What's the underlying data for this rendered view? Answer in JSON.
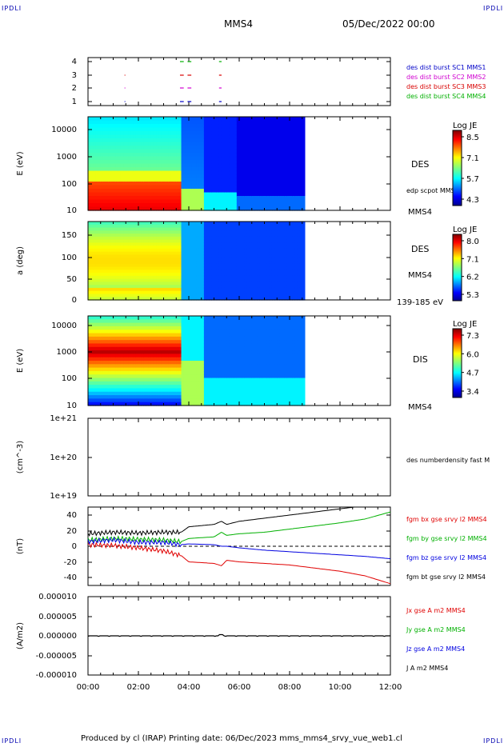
{
  "corner_label": "IPDLI",
  "header": {
    "spacecraft": "MMS4",
    "date": "05/Dec/2022 00:00"
  },
  "footer": {
    "text": "Produced by cl (IRAP)   Printing date: 06/Dec/2023   mms_mms4_srvy_vue_web1.cl"
  },
  "x_axis": {
    "ticks": [
      "00:00",
      "02:00",
      "04:00",
      "06:00",
      "08:00",
      "10:00",
      "12:00"
    ]
  },
  "panels": {
    "avail": {
      "ticks": [
        "4",
        "3",
        "2",
        "1"
      ],
      "legend": [
        {
          "text": "des dist burst SC1 MMS1",
          "color": "#0000c8"
        },
        {
          "text": "des dist burst SC2 MMS2",
          "color": "#d000d0"
        },
        {
          "text": "des dist burst SC3 MMS3",
          "color": "#d80000"
        },
        {
          "text": "des dist burst SC4 MMS4",
          "color": "#00b000"
        }
      ]
    },
    "des_e": {
      "ylabel": "E (eV)",
      "ticks": [
        "10000",
        "1000",
        "100",
        "10"
      ],
      "right1": "DES",
      "right2": "edp scpot MMS4",
      "right3": "MMS4",
      "cbar": {
        "title": "Log JE",
        "ticks": [
          "8.5",
          "7.1",
          "5.7",
          "4.3"
        ]
      }
    },
    "des_pa": {
      "ylabel": "a (deg)",
      "ticks": [
        "150",
        "100",
        "50",
        "0"
      ],
      "right1": "DES",
      "right2": "MMS4",
      "right3": "139-185 eV",
      "cbar": {
        "title": "Log JE",
        "ticks": [
          "8.0",
          "7.1",
          "6.2",
          "5.3"
        ]
      }
    },
    "dis_e": {
      "ylabel": "E (eV)",
      "ticks": [
        "10000",
        "1000",
        "100",
        "10"
      ],
      "right1": "DIS",
      "right3": "MMS4",
      "cbar": {
        "title": "Log JE",
        "ticks": [
          "7.3",
          "6.0",
          "4.7",
          "3.4"
        ]
      }
    },
    "dens": {
      "ylabel": "(cm^-3)",
      "ticks": [
        "1e+21",
        "1e+20",
        "1e+19"
      ],
      "right1": "des numberdensity fast M"
    },
    "fgm": {
      "ylabel": "(nT)",
      "ticks": [
        "40",
        "20",
        "0",
        "-20",
        "-40"
      ],
      "legend": [
        {
          "text": "fgm bx gse srvy l2 MMS4",
          "color": "#e00000"
        },
        {
          "text": "fgm by gse srvy l2 MMS4",
          "color": "#00b000"
        },
        {
          "text": "fgm bz gse srvy l2 MMS4",
          "color": "#0000e0"
        },
        {
          "text": "fgm bt gse srvy l2 MMS4",
          "color": "#000000"
        }
      ]
    },
    "curr": {
      "ylabel": "(A/m2)",
      "ticks": [
        "0.000010",
        "0.000005",
        "0.000000",
        "-0.000005",
        "-0.000010"
      ],
      "legend": [
        {
          "text": "Jx gse A m2 MMS4",
          "color": "#e00000"
        },
        {
          "text": "Jy gse A m2 MMS4",
          "color": "#00b000"
        },
        {
          "text": "Jz gse A m2 MMS4",
          "color": "#0000e0"
        },
        {
          "text": "J A m2 MMS4",
          "color": "#000000"
        }
      ]
    }
  },
  "chart_data": [
    {
      "type": "line",
      "title": "fgm B gse (nT)",
      "x_units": "hours since 05/Dec/2022 00:00",
      "ylim": [
        -50,
        50
      ],
      "x": [
        0,
        1,
        2,
        3,
        3.7,
        4,
        5,
        5.3,
        5.5,
        6,
        7,
        8,
        9,
        10,
        11,
        12
      ],
      "series": [
        {
          "name": "fgm bx gse srvy l2 MMS4",
          "values": [
            2,
            1,
            -2,
            -6,
            -12,
            -20,
            -22,
            -25,
            -18,
            -20,
            -22,
            -24,
            -28,
            -32,
            -38,
            -48
          ]
        },
        {
          "name": "fgm by gse srvy l2 MMS4",
          "values": [
            8,
            10,
            9,
            8,
            6,
            10,
            12,
            18,
            14,
            16,
            18,
            22,
            26,
            30,
            35,
            44
          ]
        },
        {
          "name": "fgm bz gse srvy l2 MMS4",
          "values": [
            6,
            8,
            5,
            5,
            2,
            3,
            2,
            0,
            0,
            -2,
            -5,
            -7,
            -9,
            -11,
            -13,
            -16
          ]
        },
        {
          "name": "fgm bt gse srvy l2 MMS4",
          "values": [
            16,
            18,
            17,
            18,
            18,
            25,
            28,
            32,
            28,
            32,
            36,
            40,
            44,
            48,
            52,
            56
          ]
        }
      ]
    },
    {
      "type": "line",
      "title": "J gse (A/m2)",
      "x_units": "hours since 05/Dec/2022 00:00",
      "ylim": [
        -1e-05,
        1e-05
      ],
      "x": [
        0,
        2,
        4,
        5.3,
        6,
        8,
        10,
        12
      ],
      "series": [
        {
          "name": "J A m2 MMS4",
          "values": [
            0,
            0,
            0,
            0,
            0,
            0,
            0,
            0
          ]
        }
      ]
    },
    {
      "type": "heatmap",
      "title": "DES E (eV)",
      "x_units": "hours",
      "ylim": [
        10,
        30000
      ],
      "log_y": true,
      "xlim": [
        0,
        8.6
      ]
    },
    {
      "type": "heatmap",
      "title": "DES a (deg)",
      "x_units": "hours",
      "ylim": [
        0,
        180
      ],
      "xlim": [
        0,
        8.6
      ]
    },
    {
      "type": "heatmap",
      "title": "DIS E (eV)",
      "x_units": "hours",
      "ylim": [
        10,
        30000
      ],
      "log_y": true,
      "xlim": [
        0,
        8.6
      ]
    }
  ]
}
